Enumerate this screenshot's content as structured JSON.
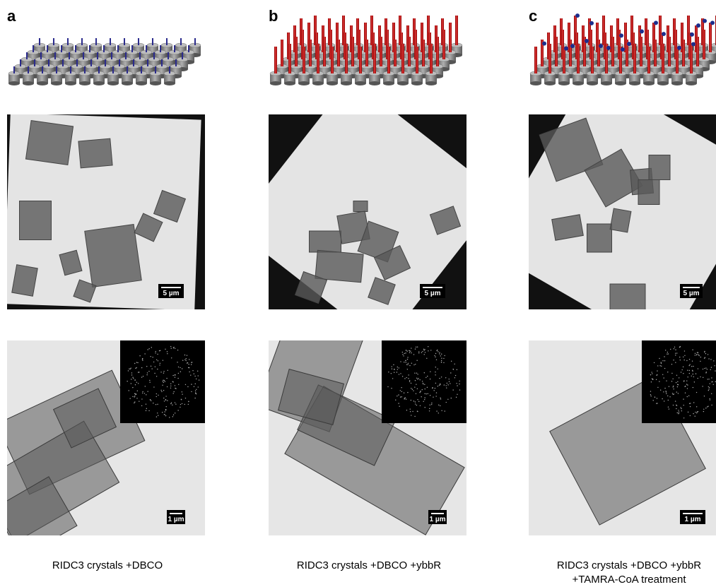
{
  "panels": [
    {
      "label": "a",
      "scale_top": "5 µm",
      "scale_bottom": "1 µm",
      "caption": [
        "RIDC3 crystals +DBCO"
      ]
    },
    {
      "label": "b",
      "scale_top": "5 µm",
      "scale_bottom": "1 µm",
      "caption": [
        "RIDC3 crystals +DBCO +ybbR"
      ]
    },
    {
      "label": "c",
      "scale_top": "5 µm",
      "scale_bottom": "1 µm",
      "caption": [
        "RIDC3 crystals +DBCO +ybbR",
        "+TAMRA-CoA treatment"
      ]
    }
  ]
}
